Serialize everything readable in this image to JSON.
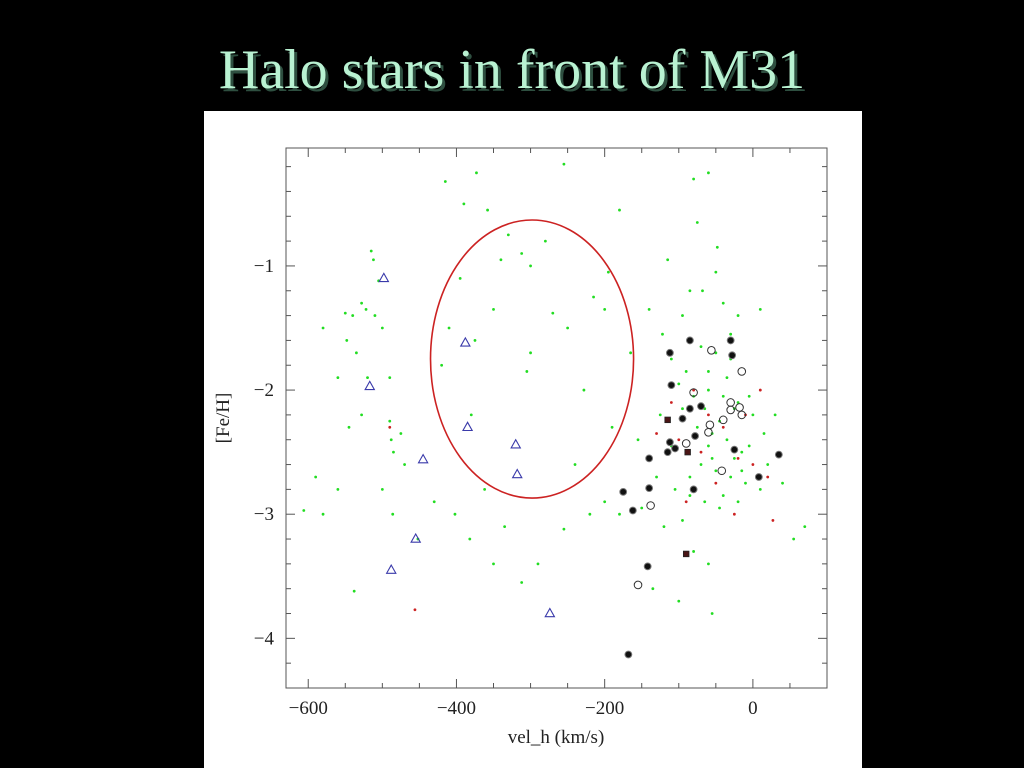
{
  "slide": {
    "title": "Halo stars in front of M31"
  },
  "chart_data": {
    "type": "scatter",
    "title": "",
    "xlabel": "vel_h (km/s)",
    "ylabel": "[Fe/H]",
    "xlim": [
      -630,
      100
    ],
    "ylim": [
      -4.4,
      -0.05
    ],
    "xticks": [
      -600,
      -400,
      -200,
      0
    ],
    "xtick_labels": [
      "−600",
      "−400",
      "−200",
      "0"
    ],
    "yticks": [
      -1,
      -2,
      -3,
      -4
    ],
    "ytick_labels": [
      "−1",
      "−2",
      "−3",
      "−4"
    ],
    "colors": {
      "green": "#22dd22",
      "red": "#cc2222",
      "black": "#111111",
      "blue": "#3a3aaa",
      "ellipse": "#cc2222"
    },
    "series": [
      {
        "marker": "green-dot",
        "points": [
          [
            -540,
            -1.4
          ],
          [
            -528,
            -1.3
          ],
          [
            -522,
            -1.35
          ],
          [
            -510,
            -1.4
          ],
          [
            -500,
            -1.5
          ],
          [
            -515,
            -0.88
          ],
          [
            -512,
            -0.95
          ],
          [
            -505,
            -1.12
          ],
          [
            -550,
            -1.38
          ],
          [
            -548,
            -1.6
          ],
          [
            -535,
            -1.7
          ],
          [
            -520,
            -1.9
          ],
          [
            -490,
            -1.9
          ],
          [
            -488,
            -2.4
          ],
          [
            -470,
            -2.6
          ],
          [
            -485,
            -2.5
          ],
          [
            -560,
            -1.9
          ],
          [
            -580,
            -1.5
          ],
          [
            -590,
            -2.7
          ],
          [
            -606,
            -2.97
          ],
          [
            -580,
            -3.0
          ],
          [
            -560,
            -2.8
          ],
          [
            -545,
            -2.3
          ],
          [
            -528,
            -2.2
          ],
          [
            -538,
            -3.62
          ],
          [
            -490,
            -2.25
          ],
          [
            -475,
            -2.35
          ],
          [
            -500,
            -2.8
          ],
          [
            -486,
            -3.0
          ],
          [
            -452,
            -3.2
          ],
          [
            -430,
            -2.9
          ],
          [
            -402,
            -3.0
          ],
          [
            -382,
            -3.2
          ],
          [
            -420,
            -1.8
          ],
          [
            -410,
            -1.5
          ],
          [
            -395,
            -1.1
          ],
          [
            -375,
            -1.6
          ],
          [
            -390,
            -0.5
          ],
          [
            -415,
            -0.32
          ],
          [
            -373,
            -0.25
          ],
          [
            -358,
            -0.55
          ],
          [
            -340,
            -0.95
          ],
          [
            -330,
            -0.75
          ],
          [
            -312,
            -0.9
          ],
          [
            -300,
            -1.0
          ],
          [
            -280,
            -0.8
          ],
          [
            -255,
            -0.18
          ],
          [
            -305,
            -1.85
          ],
          [
            -380,
            -2.2
          ],
          [
            -350,
            -1.35
          ],
          [
            -300,
            -1.7
          ],
          [
            -270,
            -1.38
          ],
          [
            -250,
            -1.5
          ],
          [
            -228,
            -2.0
          ],
          [
            -240,
            -2.6
          ],
          [
            -215,
            -1.25
          ],
          [
            -200,
            -1.35
          ],
          [
            -195,
            -1.05
          ],
          [
            -180,
            -0.55
          ],
          [
            -190,
            -2.3
          ],
          [
            -200,
            -2.9
          ],
          [
            -220,
            -3.0
          ],
          [
            -255,
            -3.12
          ],
          [
            -290,
            -3.4
          ],
          [
            -312,
            -3.55
          ],
          [
            -350,
            -3.4
          ],
          [
            -362,
            -2.8
          ],
          [
            -335,
            -3.1
          ],
          [
            -180,
            -3.0
          ],
          [
            -165,
            -1.7
          ],
          [
            -140,
            -1.35
          ],
          [
            -122,
            -1.55
          ],
          [
            -115,
            -0.95
          ],
          [
            -95,
            -1.4
          ],
          [
            -80,
            -0.3
          ],
          [
            -75,
            -0.65
          ],
          [
            -85,
            -1.2
          ],
          [
            -68,
            -1.2
          ],
          [
            -60,
            -0.25
          ],
          [
            -48,
            -0.85
          ],
          [
            -50,
            -1.05
          ],
          [
            -40,
            -1.3
          ],
          [
            -20,
            -1.4
          ],
          [
            -30,
            -1.55
          ],
          [
            10,
            -1.35
          ],
          [
            -70,
            -1.65
          ],
          [
            -50,
            -1.7
          ],
          [
            -90,
            -1.85
          ],
          [
            -100,
            -1.95
          ],
          [
            -60,
            -2.0
          ],
          [
            -40,
            -2.05
          ],
          [
            -20,
            -2.1
          ],
          [
            0,
            -2.2
          ],
          [
            -75,
            -2.3
          ],
          [
            -55,
            -2.35
          ],
          [
            -35,
            -2.4
          ],
          [
            -15,
            -2.5
          ],
          [
            -110,
            -2.45
          ],
          [
            -90,
            -2.5
          ],
          [
            -70,
            -2.6
          ],
          [
            -50,
            -2.65
          ],
          [
            -30,
            -2.7
          ],
          [
            -10,
            -2.75
          ],
          [
            10,
            -2.8
          ],
          [
            -130,
            -2.7
          ],
          [
            -105,
            -2.8
          ],
          [
            -85,
            -2.85
          ],
          [
            -65,
            -2.9
          ],
          [
            -45,
            -2.95
          ],
          [
            -25,
            -2.55
          ],
          [
            -5,
            -2.45
          ],
          [
            15,
            -2.35
          ],
          [
            -95,
            -2.15
          ],
          [
            -45,
            -2.25
          ],
          [
            -25,
            -2.15
          ],
          [
            -5,
            -2.05
          ],
          [
            -115,
            -2.25
          ],
          [
            -60,
            -2.45
          ],
          [
            -80,
            -2.05
          ],
          [
            -35,
            -1.9
          ],
          [
            -65,
            -2.15
          ],
          [
            -55,
            -2.55
          ],
          [
            -15,
            -2.65
          ],
          [
            -125,
            -2.2
          ],
          [
            -85,
            -2.7
          ],
          [
            -40,
            -2.85
          ],
          [
            20,
            -2.6
          ],
          [
            30,
            -2.2
          ],
          [
            55,
            -3.2
          ],
          [
            70,
            -3.1
          ],
          [
            -135,
            -3.6
          ],
          [
            -100,
            -3.7
          ],
          [
            -60,
            -3.4
          ],
          [
            -55,
            -3.8
          ],
          [
            -80,
            -3.3
          ],
          [
            -120,
            -3.1
          ],
          [
            -150,
            -2.95
          ],
          [
            -155,
            -2.4
          ],
          [
            -95,
            -3.05
          ],
          [
            -20,
            -2.9
          ],
          [
            40,
            -2.75
          ],
          [
            -110,
            -1.75
          ],
          [
            -60,
            -1.85
          ],
          [
            -30,
            -1.75
          ]
        ]
      },
      {
        "marker": "red-dot",
        "points": [
          [
            -490,
            -2.3
          ],
          [
            -456,
            -3.77
          ],
          [
            -110,
            -2.1
          ],
          [
            -80,
            -2.0
          ],
          [
            -60,
            -2.2
          ],
          [
            -40,
            -2.3
          ],
          [
            -20,
            -2.55
          ],
          [
            0,
            -2.6
          ],
          [
            -100,
            -2.4
          ],
          [
            -70,
            -2.5
          ],
          [
            -10,
            -2.2
          ],
          [
            10,
            -2.0
          ],
          [
            20,
            -2.7
          ],
          [
            -25,
            -3.0
          ],
          [
            -130,
            -2.35
          ],
          [
            27,
            -3.05
          ],
          [
            -90,
            -2.9
          ],
          [
            -50,
            -2.75
          ]
        ]
      },
      {
        "marker": "black-filled-circle",
        "points": [
          [
            -112,
            -1.7
          ],
          [
            -85,
            -1.6
          ],
          [
            -30,
            -1.6
          ],
          [
            -28,
            -1.72
          ],
          [
            -110,
            -1.96
          ],
          [
            -70,
            -2.13
          ],
          [
            -85,
            -2.15
          ],
          [
            -95,
            -2.23
          ],
          [
            -78,
            -2.37
          ],
          [
            -112,
            -2.42
          ],
          [
            -105,
            -2.47
          ],
          [
            -115,
            -2.5
          ],
          [
            -140,
            -2.55
          ],
          [
            -175,
            -2.82
          ],
          [
            -162,
            -2.97
          ],
          [
            -140,
            -2.79
          ],
          [
            -80,
            -2.8
          ],
          [
            -25,
            -2.48
          ],
          [
            35,
            -2.52
          ],
          [
            8,
            -2.7
          ],
          [
            -142,
            -3.42
          ],
          [
            -168,
            -4.13
          ]
        ]
      },
      {
        "marker": "black-filled-square",
        "points": [
          [
            -115,
            -2.24
          ],
          [
            -88,
            -2.5
          ],
          [
            -90,
            -3.32
          ]
        ]
      },
      {
        "marker": "open-circle",
        "points": [
          [
            -56,
            -1.68
          ],
          [
            -15,
            -1.85
          ],
          [
            -80,
            -2.02
          ],
          [
            -30,
            -2.1
          ],
          [
            -30,
            -2.16
          ],
          [
            -18,
            -2.14
          ],
          [
            -15,
            -2.2
          ],
          [
            -40,
            -2.24
          ],
          [
            -58,
            -2.28
          ],
          [
            -60,
            -2.34
          ],
          [
            -90,
            -2.43
          ],
          [
            -42,
            -2.65
          ],
          [
            -138,
            -2.93
          ],
          [
            -155,
            -3.57
          ]
        ]
      },
      {
        "marker": "blue-triangle",
        "points": [
          [
            -498,
            -1.1
          ],
          [
            -517,
            -1.97
          ],
          [
            -388,
            -1.62
          ],
          [
            -385,
            -2.3
          ],
          [
            -445,
            -2.56
          ],
          [
            -320,
            -2.44
          ],
          [
            -318,
            -2.68
          ],
          [
            -455,
            -3.2
          ],
          [
            -488,
            -3.45
          ],
          [
            -274,
            -3.8
          ]
        ]
      }
    ],
    "annotations": [
      {
        "shape": "ellipse",
        "color": "red",
        "center": [
          -298,
          -1.75
        ],
        "radius_x": 137,
        "radius_y": 1.12
      }
    ]
  }
}
